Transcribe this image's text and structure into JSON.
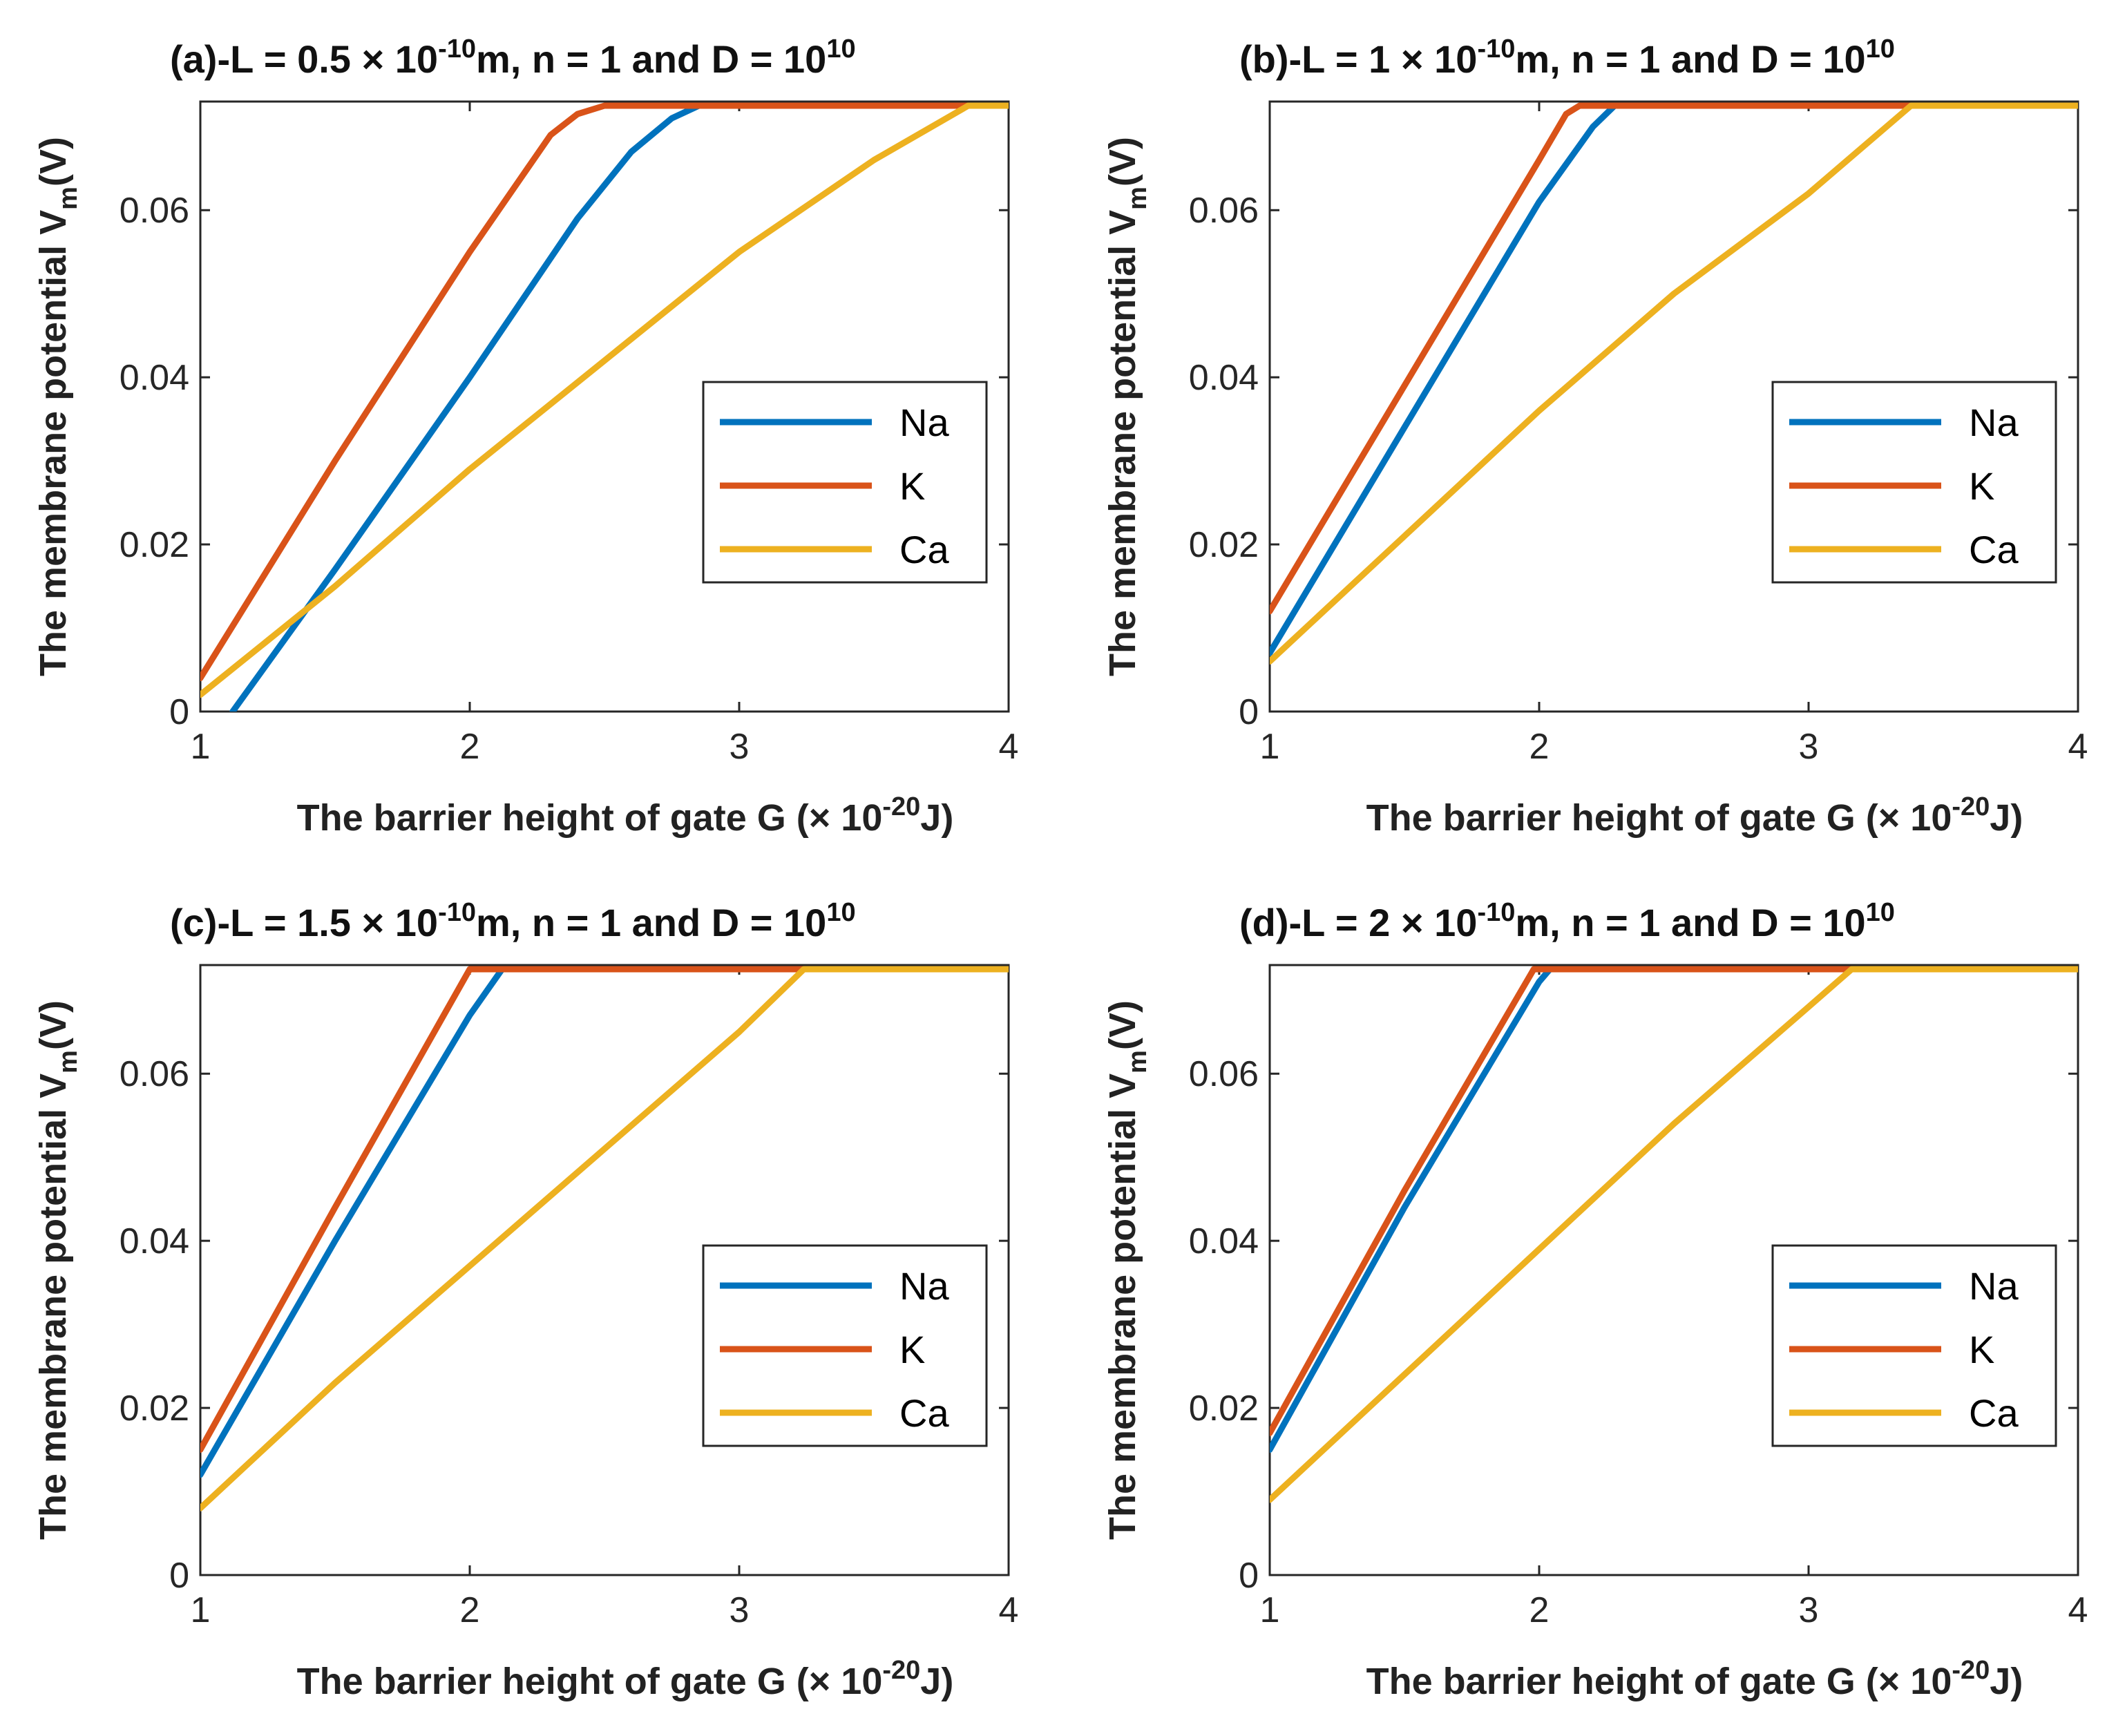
{
  "figure": {
    "xlabel_main": "The barrier height of gate G (",
    "x_times": "×",
    "x_unit_base": " 10",
    "x_unit_exp": "-20",
    "x_unit_tail": "J)",
    "ylabel_main": "The membrane potential V",
    "ylabel_sub": "m",
    "ylabel_unit": "(V)"
  },
  "chart_data": [
    {
      "type": "line",
      "panel": "(a)",
      "title": {
        "prefix": "(a)-L = 0.5 ",
        "times": "×",
        "base": " 10",
        "exp": "-10",
        "mid": "m, n = 1 and  D = 10",
        "dexp": "10"
      },
      "xlim": [
        1,
        4
      ],
      "ylim": [
        0,
        0.073
      ],
      "xticks": [
        "1",
        "2",
        "3",
        "4"
      ],
      "yticks": [
        "0",
        "0.02",
        "0.04",
        "0.06"
      ],
      "series": [
        {
          "name": "Na",
          "color": "#0072BD",
          "x": [
            1.12,
            1.5,
            2.0,
            2.4,
            2.6,
            2.75,
            2.85,
            4.0
          ],
          "y": [
            0,
            0.017,
            0.04,
            0.059,
            0.067,
            0.071,
            0.0725,
            0.0725
          ]
        },
        {
          "name": "K",
          "color": "#D95319",
          "x": [
            1.0,
            1.5,
            2.0,
            2.3,
            2.4,
            2.5,
            4.0
          ],
          "y": [
            0.004,
            0.03,
            0.055,
            0.069,
            0.0715,
            0.0725,
            0.0725
          ]
        },
        {
          "name": "Ca",
          "color": "#EDB120",
          "x": [
            1.0,
            1.5,
            2.0,
            2.5,
            3.0,
            3.5,
            3.85,
            4.0
          ],
          "y": [
            0.002,
            0.015,
            0.029,
            0.042,
            0.055,
            0.066,
            0.0725,
            0.0725
          ]
        }
      ]
    },
    {
      "type": "line",
      "panel": "(b)",
      "title": {
        "prefix": "(b)-L = 1 ",
        "times": "×",
        "base": " 10",
        "exp": "-10",
        "mid": "m, n = 1 and  D = 10",
        "dexp": "10"
      },
      "xlim": [
        1,
        4
      ],
      "ylim": [
        0,
        0.073
      ],
      "xticks": [
        "1",
        "2",
        "3",
        "4"
      ],
      "yticks": [
        "0",
        "0.02",
        "0.04",
        "0.06"
      ],
      "series": [
        {
          "name": "Na",
          "color": "#0072BD",
          "x": [
            1.0,
            1.5,
            2.0,
            2.2,
            2.28,
            4.0
          ],
          "y": [
            0.007,
            0.034,
            0.061,
            0.07,
            0.0725,
            0.0725
          ]
        },
        {
          "name": "K",
          "color": "#D95319",
          "x": [
            1.0,
            1.5,
            2.0,
            2.1,
            2.15,
            4.0
          ],
          "y": [
            0.012,
            0.039,
            0.066,
            0.0715,
            0.0725,
            0.0725
          ]
        },
        {
          "name": "Ca",
          "color": "#EDB120",
          "x": [
            1.0,
            1.5,
            2.0,
            2.5,
            3.0,
            3.38,
            4.0
          ],
          "y": [
            0.006,
            0.021,
            0.036,
            0.05,
            0.062,
            0.0725,
            0.0725
          ]
        }
      ]
    },
    {
      "type": "line",
      "panel": "(c)",
      "title": {
        "prefix": "(c)-L = 1.5 ",
        "times": "×",
        "base": " 10",
        "exp": "-10",
        "mid": "m, n = 1 and  D = 10",
        "dexp": "10"
      },
      "xlim": [
        1,
        4
      ],
      "ylim": [
        0,
        0.073
      ],
      "xticks": [
        "1",
        "2",
        "3",
        "4"
      ],
      "yticks": [
        "0",
        "0.02",
        "0.04",
        "0.06"
      ],
      "series": [
        {
          "name": "Na",
          "color": "#0072BD",
          "x": [
            1.0,
            1.5,
            2.0,
            2.12,
            4.0
          ],
          "y": [
            0.012,
            0.04,
            0.067,
            0.0725,
            0.0725
          ]
        },
        {
          "name": "K",
          "color": "#D95319",
          "x": [
            1.0,
            1.5,
            2.0,
            4.0
          ],
          "y": [
            0.015,
            0.044,
            0.0725,
            0.0725
          ]
        },
        {
          "name": "Ca",
          "color": "#EDB120",
          "x": [
            1.0,
            1.5,
            2.0,
            2.5,
            3.0,
            3.24,
            4.0
          ],
          "y": [
            0.008,
            0.023,
            0.037,
            0.051,
            0.065,
            0.0725,
            0.0725
          ]
        }
      ]
    },
    {
      "type": "line",
      "panel": "(d)",
      "title": {
        "prefix": "(d)-L = 2 ",
        "times": "×",
        "base": " 10",
        "exp": "-10",
        "mid": "m, n = 1 and  D = 10",
        "dexp": "10"
      },
      "xlim": [
        1,
        4
      ],
      "ylim": [
        0,
        0.073
      ],
      "xticks": [
        "1",
        "2",
        "3",
        "4"
      ],
      "yticks": [
        "0",
        "0.02",
        "0.04",
        "0.06"
      ],
      "series": [
        {
          "name": "Na",
          "color": "#0072BD",
          "x": [
            1.0,
            1.5,
            2.0,
            2.04,
            4.0
          ],
          "y": [
            0.015,
            0.044,
            0.071,
            0.0725,
            0.0725
          ]
        },
        {
          "name": "K",
          "color": "#D95319",
          "x": [
            1.0,
            1.5,
            1.98,
            4.0
          ],
          "y": [
            0.017,
            0.046,
            0.0725,
            0.0725
          ]
        },
        {
          "name": "Ca",
          "color": "#EDB120",
          "x": [
            1.0,
            1.5,
            2.0,
            2.5,
            3.0,
            3.16,
            4.0
          ],
          "y": [
            0.009,
            0.024,
            0.039,
            0.054,
            0.068,
            0.0725,
            0.0725
          ]
        }
      ]
    }
  ]
}
